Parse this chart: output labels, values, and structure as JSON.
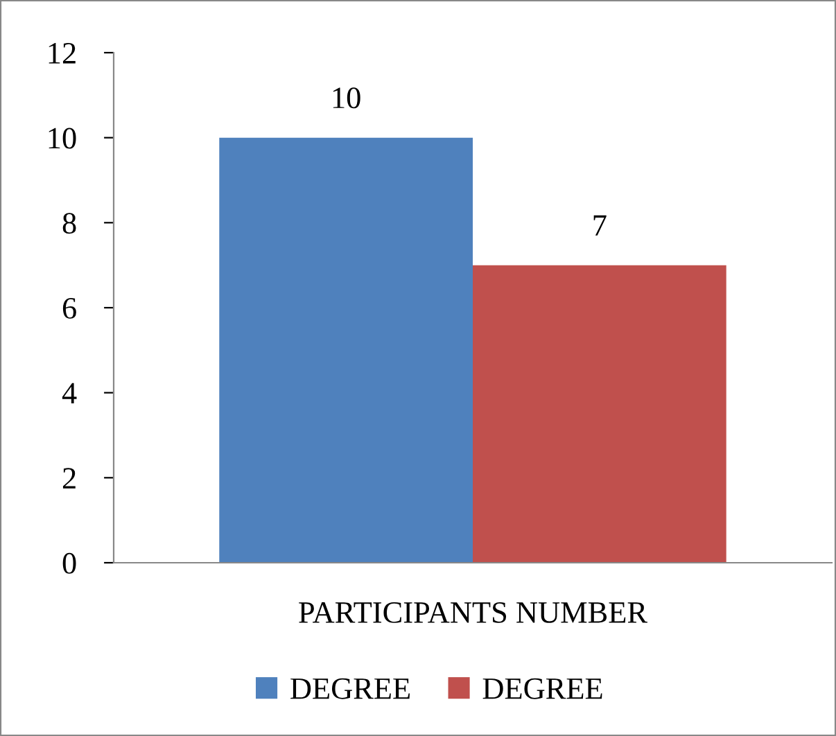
{
  "chart_data": {
    "type": "bar",
    "categories": [
      "PARTICIPANTS NUMBER"
    ],
    "series": [
      {
        "name": "DEGREE",
        "color": "#4f81bd",
        "values": [
          10
        ]
      },
      {
        "name": "DEGREE",
        "color": "#c0504d",
        "values": [
          7
        ]
      }
    ],
    "ylim": [
      0,
      12
    ],
    "yticks": [
      0,
      2,
      4,
      6,
      8,
      10,
      12
    ],
    "data_labels": true,
    "legend": "bottom",
    "grid": false
  }
}
